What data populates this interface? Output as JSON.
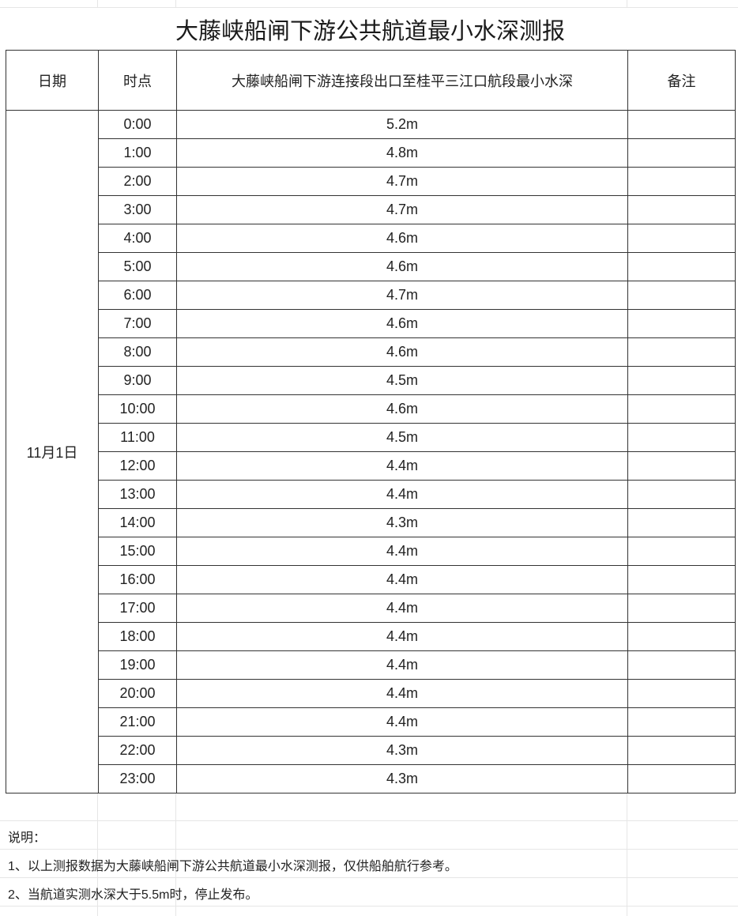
{
  "title": "大藤峡船闸下游公共航道最小水深测报",
  "headers": {
    "date": "日期",
    "time": "时点",
    "depth": "大藤峡船闸下游连接段出口至桂平三江口航段最小水深",
    "remark": "备注"
  },
  "date": "11月1日",
  "rows": [
    {
      "time": "0:00",
      "depth": "5.2m"
    },
    {
      "time": "1:00",
      "depth": "4.8m"
    },
    {
      "time": "2:00",
      "depth": "4.7m"
    },
    {
      "time": "3:00",
      "depth": "4.7m"
    },
    {
      "time": "4:00",
      "depth": "4.6m"
    },
    {
      "time": "5:00",
      "depth": "4.6m"
    },
    {
      "time": "6:00",
      "depth": "4.7m"
    },
    {
      "time": "7:00",
      "depth": "4.6m"
    },
    {
      "time": "8:00",
      "depth": "4.6m"
    },
    {
      "time": "9:00",
      "depth": "4.5m"
    },
    {
      "time": "10:00",
      "depth": "4.6m"
    },
    {
      "time": "11:00",
      "depth": "4.5m"
    },
    {
      "time": "12:00",
      "depth": "4.4m"
    },
    {
      "time": "13:00",
      "depth": "4.4m"
    },
    {
      "time": "14:00",
      "depth": "4.3m"
    },
    {
      "time": "15:00",
      "depth": "4.4m"
    },
    {
      "time": "16:00",
      "depth": "4.4m"
    },
    {
      "time": "17:00",
      "depth": "4.4m"
    },
    {
      "time": "18:00",
      "depth": "4.4m"
    },
    {
      "time": "19:00",
      "depth": "4.4m"
    },
    {
      "time": "20:00",
      "depth": "4.4m"
    },
    {
      "time": "21:00",
      "depth": "4.4m"
    },
    {
      "time": "22:00",
      "depth": "4.3m"
    },
    {
      "time": "23:00",
      "depth": "4.3m"
    }
  ],
  "notes": {
    "heading": "说明：",
    "items": [
      "1、以上测报数据为大藤峡船闸下游公共航道最小水深测报，仅供船舶航行参考。",
      "2、当航道实测水深大于5.5m时，停止发布。"
    ]
  }
}
